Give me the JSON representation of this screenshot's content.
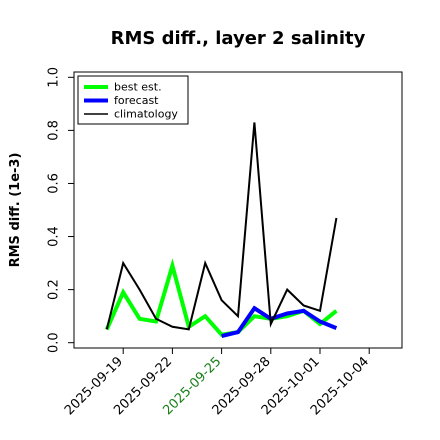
{
  "chart_data": {
    "type": "line",
    "title": "RMS diff., layer 2 salinity",
    "xlabel": "",
    "ylabel": "RMS diff. (1e-3)",
    "ylim": [
      -0.02,
      1.02
    ],
    "xlim": [
      "2025-09-16",
      "2025-10-06"
    ],
    "yticks": [
      0.0,
      0.2,
      0.4,
      0.6,
      0.8,
      1.0
    ],
    "ytick_labels": [
      "0.0",
      "0.2",
      "0.4",
      "0.6",
      "0.8",
      "1.0"
    ],
    "xticks": [
      "2025-09-19",
      "2025-09-22",
      "2025-09-25",
      "2025-09-28",
      "2025-10-01",
      "2025-10-04"
    ],
    "xtick_labels": [
      "2025-09-19",
      "2025-09-22",
      "2025-09-25",
      "2025-09-28",
      "2025-10-01",
      "2025-10-04"
    ],
    "highlighted_tick": "2025-09-25",
    "highlight_color": "#1a7f1a",
    "grid": false,
    "legend_position": "upper-left",
    "series": [
      {
        "name": "best est.",
        "color": "#00ff00",
        "line_width": 4,
        "x": [
          "2025-09-18",
          "2025-09-19",
          "2025-09-20",
          "2025-09-21",
          "2025-09-22",
          "2025-09-23",
          "2025-09-24",
          "2025-09-25",
          "2025-09-26",
          "2025-09-27",
          "2025-09-28",
          "2025-09-29",
          "2025-09-30",
          "2025-10-01",
          "2025-10-02"
        ],
        "values": [
          0.05,
          0.19,
          0.09,
          0.08,
          0.29,
          0.06,
          0.1,
          0.03,
          0.04,
          0.1,
          0.09,
          0.1,
          0.12,
          0.07,
          0.12
        ]
      },
      {
        "name": "forecast",
        "color": "#0000ff",
        "line_width": 4,
        "x": [
          "2025-09-25",
          "2025-09-26",
          "2025-09-27",
          "2025-09-28",
          "2025-09-29",
          "2025-09-30",
          "2025-10-01",
          "2025-10-02"
        ],
        "values": [
          0.025,
          0.04,
          0.13,
          0.09,
          0.11,
          0.12,
          0.08,
          0.055
        ]
      },
      {
        "name": "climatology",
        "color": "#000000",
        "line_width": 2,
        "x": [
          "2025-09-18",
          "2025-09-19",
          "2025-09-20",
          "2025-09-21",
          "2025-09-22",
          "2025-09-23",
          "2025-09-24",
          "2025-09-25",
          "2025-09-26",
          "2025-09-27",
          "2025-09-28",
          "2025-09-29",
          "2025-09-30",
          "2025-10-01",
          "2025-10-02"
        ],
        "values": [
          0.05,
          0.3,
          0.2,
          0.09,
          0.06,
          0.05,
          0.3,
          0.16,
          0.1,
          0.83,
          0.07,
          0.2,
          0.14,
          0.12,
          0.47
        ]
      }
    ]
  }
}
